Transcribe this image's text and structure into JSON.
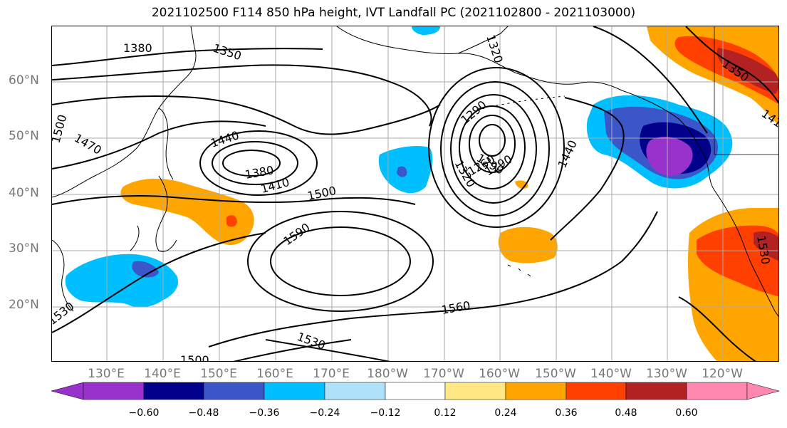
{
  "title": "2021102500 F114 850 hPa height, IVT Landfall PC (2021102800 - 2021103000)",
  "lat_labels": [
    "60°N",
    "50°N",
    "40°N",
    "30°N",
    "20°N"
  ],
  "lon_labels": [
    "130°E",
    "140°E",
    "150°E",
    "160°E",
    "170°E",
    "180°W",
    "170°W",
    "160°W",
    "150°W",
    "140°W",
    "130°W",
    "120°W"
  ],
  "contour_labels": {
    "c1380a": "1380",
    "c1350a": "1350",
    "c1320a": "1320",
    "c1500a": "1500",
    "c1470a": "1470",
    "c1440a": "1440",
    "c1380b": "1380",
    "c1410a": "1410",
    "c1500b": "1500",
    "c1590a": "1590",
    "c1560a": "1560",
    "c1530a": "1530",
    "c1530b": "1530",
    "c1500c": "1500",
    "c1290a": "1290",
    "c1290b": "1290",
    "c1320b": "1320",
    "c1260a": "1260",
    "c1290c": "1290",
    "c1440b": "1440",
    "c1350b": "1350",
    "c141": "141",
    "c1530c": "1530"
  },
  "colorbar": {
    "ticks": [
      "−0.60",
      "−0.48",
      "−0.36",
      "−0.24",
      "−0.12",
      "0.12",
      "0.24",
      "0.36",
      "0.48",
      "0.60"
    ],
    "colors": [
      "#9932cc",
      "#00008b",
      "#3a56c8",
      "#00bfff",
      "#afe1fa",
      "#ffffff",
      "#ffe883",
      "#ffa500",
      "#ff4000",
      "#b22222",
      "#ff88b0"
    ]
  }
}
